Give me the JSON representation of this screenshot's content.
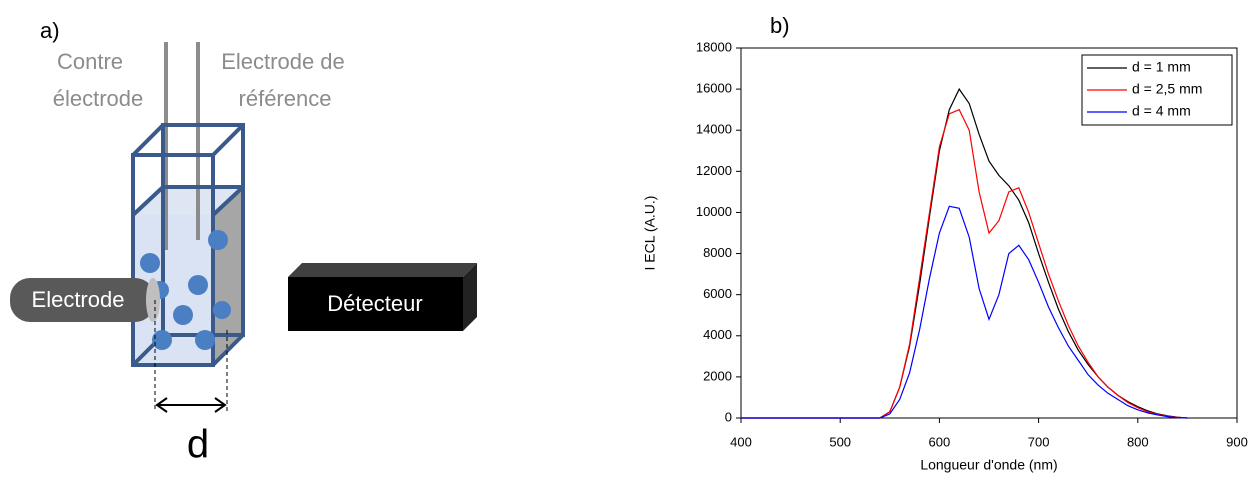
{
  "diagram": {
    "panel_label": "a)",
    "counter_electrode": [
      "Contre",
      "électrode"
    ],
    "reference_electrode": [
      "Electrode de",
      "référence"
    ],
    "electrode": "Electrode",
    "detector": "Détecteur",
    "distance": "d"
  },
  "chart_data": {
    "type": "line",
    "panel_label": "b)",
    "x_label": "Longueur d'onde (nm)",
    "y_label": "I ECL (A.U.)",
    "x": [
      400,
      410,
      420,
      430,
      440,
      450,
      460,
      470,
      480,
      490,
      500,
      510,
      520,
      530,
      540,
      550,
      560,
      570,
      580,
      590,
      600,
      610,
      620,
      630,
      640,
      650,
      660,
      670,
      680,
      690,
      700,
      710,
      720,
      730,
      740,
      750,
      760,
      770,
      780,
      790,
      800,
      810,
      820,
      830,
      840,
      850
    ],
    "series": [
      {
        "name": "d = 1 mm",
        "color": "#000000",
        "values": [
          0,
          0,
          0,
          0,
          0,
          0,
          0,
          0,
          0,
          0,
          0,
          0,
          0,
          0,
          0,
          300,
          1500,
          3500,
          6500,
          9800,
          13000,
          15000,
          16000,
          15300,
          13800,
          12500,
          11800,
          11300,
          10600,
          9500,
          8000,
          6600,
          5300,
          4200,
          3300,
          2600,
          2000,
          1500,
          1100,
          800,
          550,
          350,
          200,
          100,
          40,
          0
        ]
      },
      {
        "name": "d = 2,5 mm",
        "color": "#ff0000",
        "values": [
          0,
          0,
          0,
          0,
          0,
          0,
          0,
          0,
          0,
          0,
          0,
          0,
          0,
          0,
          0,
          300,
          1500,
          3600,
          6800,
          10000,
          13200,
          14800,
          15000,
          14000,
          11000,
          9000,
          9600,
          11000,
          11200,
          10000,
          8500,
          7000,
          5700,
          4500,
          3500,
          2700,
          2000,
          1500,
          1100,
          750,
          500,
          300,
          180,
          90,
          30,
          0
        ]
      },
      {
        "name": "d = 4 mm",
        "color": "#0000ff",
        "values": [
          0,
          0,
          0,
          0,
          0,
          0,
          0,
          0,
          0,
          0,
          0,
          0,
          0,
          0,
          0,
          200,
          900,
          2200,
          4300,
          6800,
          9000,
          10300,
          10200,
          8800,
          6300,
          4800,
          6000,
          8000,
          8400,
          7700,
          6600,
          5400,
          4400,
          3500,
          2800,
          2100,
          1600,
          1200,
          900,
          600,
          400,
          250,
          150,
          70,
          20,
          0
        ]
      }
    ],
    "xlim": [
      400,
      900
    ],
    "xticks": [
      400,
      500,
      600,
      700,
      800,
      900
    ],
    "ylim": [
      0,
      18000
    ],
    "yticks": [
      0,
      2000,
      4000,
      6000,
      8000,
      10000,
      12000,
      14000,
      16000,
      18000
    ],
    "legend": "upper right"
  }
}
